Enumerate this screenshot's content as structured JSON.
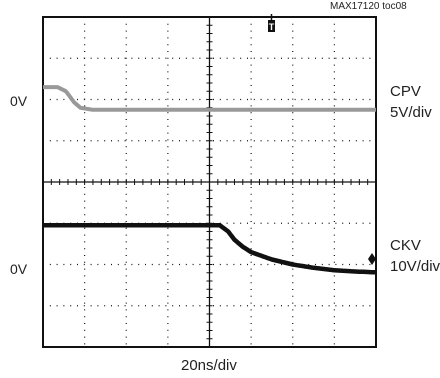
{
  "figure_id": "MAX17120 toc08",
  "chart_data": {
    "type": "line",
    "title": "",
    "xlabel": "20ns/div",
    "x_divisions": 8,
    "y_divisions": 8,
    "grid": true,
    "trigger_marker": "T",
    "series": [
      {
        "name": "CPV",
        "color": "#999999",
        "reference_label": "0V",
        "scale": "5V/div",
        "reference_div": 2.25,
        "points": [
          [
            0,
            0.55
          ],
          [
            0.35,
            0.55
          ],
          [
            0.55,
            0.45
          ],
          [
            0.75,
            0.18
          ],
          [
            0.9,
            0.05
          ],
          [
            1.2,
            0
          ],
          [
            8,
            0
          ]
        ]
      },
      {
        "name": "CKV",
        "color": "#111111",
        "reference_label": "0V",
        "scale": "10V/div",
        "reference_div": 6.2,
        "points": [
          [
            0,
            1.15
          ],
          [
            4.25,
            1.15
          ],
          [
            4.45,
            1.0
          ],
          [
            4.6,
            0.8
          ],
          [
            4.8,
            0.63
          ],
          [
            5.0,
            0.5
          ],
          [
            5.5,
            0.32
          ],
          [
            6.0,
            0.2
          ],
          [
            6.5,
            0.12
          ],
          [
            7.0,
            0.06
          ],
          [
            7.5,
            0.03
          ],
          [
            8,
            0.01
          ]
        ]
      }
    ]
  }
}
